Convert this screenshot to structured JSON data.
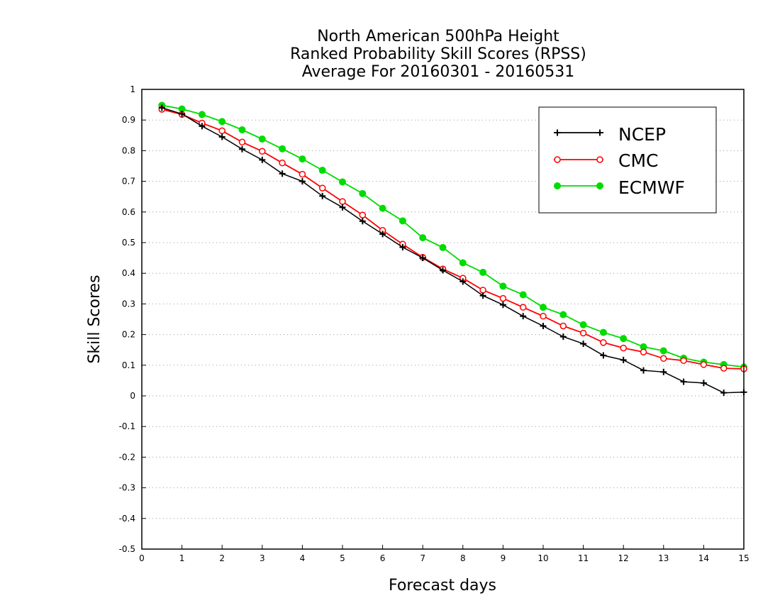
{
  "chart_data": {
    "type": "line",
    "title_lines": [
      "North American 500hPa Height",
      "Ranked Probability Skill Scores (RPSS)",
      "Average For 20160301 - 20160531"
    ],
    "xlabel": "Forecast days",
    "ylabel": "Skill Scores",
    "xlim": [
      0,
      15
    ],
    "ylim": [
      -0.5,
      1
    ],
    "x_ticks": [
      0,
      1,
      2,
      3,
      4,
      5,
      6,
      7,
      8,
      9,
      10,
      11,
      12,
      13,
      14,
      15
    ],
    "y_ticks": [
      -0.5,
      -0.4,
      -0.3,
      -0.2,
      -0.1,
      0,
      0.1,
      0.2,
      0.3,
      0.4,
      0.5,
      0.6,
      0.7,
      0.8,
      0.9,
      1
    ],
    "y_tick_labels": [
      "-0.5",
      "-0.4",
      "-0.3",
      "-0.2",
      "-0.1",
      "0",
      "0.1",
      "0.2",
      "0.3",
      "0.4",
      "0.5",
      "0.6",
      "0.7",
      "0.8",
      "0.9",
      "1"
    ],
    "grid": "horizontal dotted",
    "legend_position": "top-right",
    "x": [
      0.5,
      1,
      1.5,
      2,
      2.5,
      3,
      3.5,
      4,
      4.5,
      5,
      5.5,
      6,
      6.5,
      7,
      7.5,
      8,
      8.5,
      9,
      9.5,
      10,
      10.5,
      11,
      11.5,
      12,
      12.5,
      13,
      13.5,
      14,
      14.5,
      15
    ],
    "series": [
      {
        "name": "NCEP",
        "color": "#000000",
        "marker": "plus",
        "values": [
          0.94,
          0.92,
          0.88,
          0.845,
          0.805,
          0.77,
          0.725,
          0.7,
          0.652,
          0.615,
          0.57,
          0.528,
          0.485,
          0.45,
          0.41,
          0.373,
          0.327,
          0.297,
          0.26,
          0.228,
          0.193,
          0.17,
          0.132,
          0.117,
          0.083,
          0.078,
          0.046,
          0.042,
          0.01,
          0.012
        ]
      },
      {
        "name": "CMC",
        "color": "#ff0000",
        "marker": "open-circle",
        "values": [
          0.935,
          0.918,
          0.89,
          0.865,
          0.828,
          0.798,
          0.76,
          0.723,
          0.678,
          0.634,
          0.59,
          0.54,
          0.495,
          0.452,
          0.414,
          0.384,
          0.345,
          0.318,
          0.289,
          0.26,
          0.228,
          0.205,
          0.174,
          0.156,
          0.143,
          0.122,
          0.115,
          0.102,
          0.09,
          0.088
        ]
      },
      {
        "name": "ECMWF",
        "color": "#00dc00",
        "marker": "filled-circle",
        "values": [
          0.948,
          0.936,
          0.918,
          0.895,
          0.868,
          0.838,
          0.806,
          0.773,
          0.736,
          0.698,
          0.66,
          0.612,
          0.571,
          0.516,
          0.484,
          0.434,
          0.403,
          0.358,
          0.33,
          0.289,
          0.265,
          0.232,
          0.207,
          0.187,
          0.16,
          0.147,
          0.123,
          0.11,
          0.102,
          0.094
        ]
      }
    ]
  }
}
